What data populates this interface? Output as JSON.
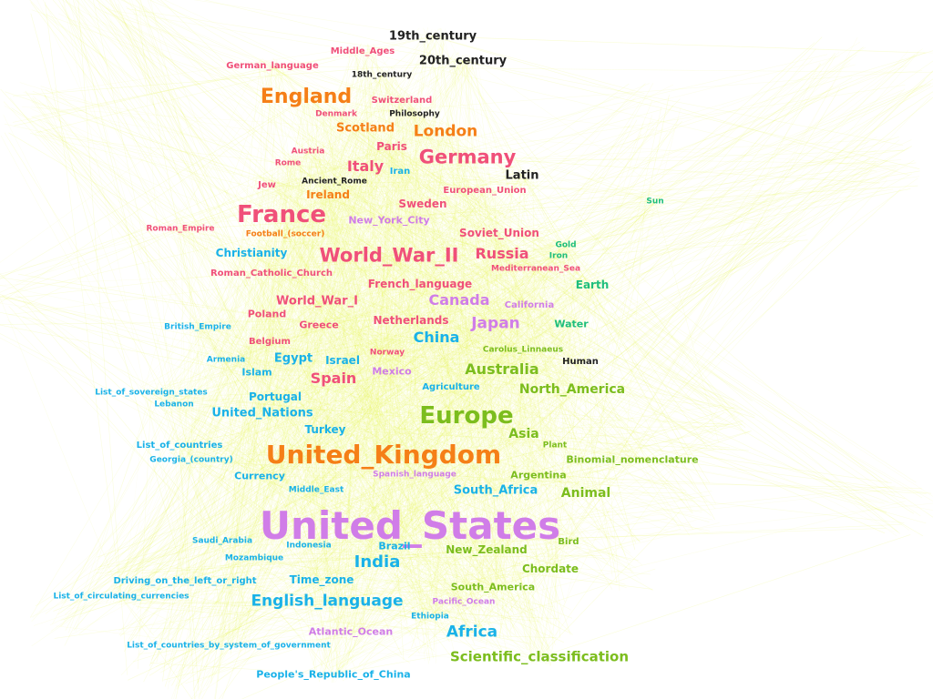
{
  "colors": {
    "pink": "#f0507a",
    "orange": "#f57f17",
    "green": "#7cbd1e",
    "cyan": "#1ab2e8",
    "violet": "#d07de8",
    "teal": "#1ebe7c",
    "dark": "#222222",
    "edge": "#e6f542"
  },
  "nodes": [
    {
      "label": "19th_century",
      "group": "dark"
    },
    {
      "label": "Middle_Ages",
      "group": "pink"
    },
    {
      "label": "20th_century",
      "group": "dark"
    },
    {
      "label": "German_language",
      "group": "pink"
    },
    {
      "label": "18th_century",
      "group": "dark"
    },
    {
      "label": "England",
      "group": "orange"
    },
    {
      "label": "Switzerland",
      "group": "pink"
    },
    {
      "label": "Denmark",
      "group": "pink"
    },
    {
      "label": "Philosophy",
      "group": "dark"
    },
    {
      "label": "Scotland",
      "group": "orange"
    },
    {
      "label": "London",
      "group": "orange"
    },
    {
      "label": "Paris",
      "group": "pink"
    },
    {
      "label": "Austria",
      "group": "pink"
    },
    {
      "label": "Germany",
      "group": "pink"
    },
    {
      "label": "Rome",
      "group": "pink"
    },
    {
      "label": "Italy",
      "group": "pink"
    },
    {
      "label": "Iran",
      "group": "cyan"
    },
    {
      "label": "Latin",
      "group": "dark"
    },
    {
      "label": "Ancient_Rome",
      "group": "dark"
    },
    {
      "label": "Jew",
      "group": "pink"
    },
    {
      "label": "Ireland",
      "group": "orange"
    },
    {
      "label": "European_Union",
      "group": "pink"
    },
    {
      "label": "Sweden",
      "group": "pink"
    },
    {
      "label": "Sun",
      "group": "teal"
    },
    {
      "label": "France",
      "group": "pink"
    },
    {
      "label": "New_York_City",
      "group": "violet"
    },
    {
      "label": "Roman_Empire",
      "group": "pink"
    },
    {
      "label": "Football_(soccer)",
      "group": "orange"
    },
    {
      "label": "Soviet_Union",
      "group": "pink"
    },
    {
      "label": "Gold",
      "group": "teal"
    },
    {
      "label": "Christianity",
      "group": "cyan"
    },
    {
      "label": "World_War_II",
      "group": "pink"
    },
    {
      "label": "Russia",
      "group": "pink"
    },
    {
      "label": "Iron",
      "group": "teal"
    },
    {
      "label": "Mediterranean_Sea",
      "group": "pink"
    },
    {
      "label": "Roman_Catholic_Church",
      "group": "pink"
    },
    {
      "label": "French_language",
      "group": "pink"
    },
    {
      "label": "Earth",
      "group": "teal"
    },
    {
      "label": "World_War_I",
      "group": "pink"
    },
    {
      "label": "Canada",
      "group": "violet"
    },
    {
      "label": "California",
      "group": "violet"
    },
    {
      "label": "Poland",
      "group": "pink"
    },
    {
      "label": "Netherlands",
      "group": "pink"
    },
    {
      "label": "Greece",
      "group": "pink"
    },
    {
      "label": "Japan",
      "group": "violet"
    },
    {
      "label": "British_Empire",
      "group": "cyan"
    },
    {
      "label": "Water",
      "group": "teal"
    },
    {
      "label": "China",
      "group": "cyan"
    },
    {
      "label": "Belgium",
      "group": "pink"
    },
    {
      "label": "Norway",
      "group": "pink"
    },
    {
      "label": "Carolus_Linnaeus",
      "group": "green"
    },
    {
      "label": "Armenia",
      "group": "cyan"
    },
    {
      "label": "Egypt",
      "group": "cyan"
    },
    {
      "label": "Israel",
      "group": "cyan"
    },
    {
      "label": "Human",
      "group": "dark"
    },
    {
      "label": "Islam",
      "group": "cyan"
    },
    {
      "label": "Mexico",
      "group": "violet"
    },
    {
      "label": "Australia",
      "group": "green"
    },
    {
      "label": "Spain",
      "group": "pink"
    },
    {
      "label": "List_of_sovereign_states",
      "group": "cyan"
    },
    {
      "label": "Agriculture",
      "group": "cyan"
    },
    {
      "label": "North_America",
      "group": "green"
    },
    {
      "label": "Portugal",
      "group": "cyan"
    },
    {
      "label": "Lebanon",
      "group": "cyan"
    },
    {
      "label": "United_Nations",
      "group": "cyan"
    },
    {
      "label": "Europe",
      "group": "green"
    },
    {
      "label": "Turkey",
      "group": "cyan"
    },
    {
      "label": "Asia",
      "group": "green"
    },
    {
      "label": "List_of_countries",
      "group": "cyan"
    },
    {
      "label": "Plant",
      "group": "green"
    },
    {
      "label": "United_Kingdom",
      "group": "orange"
    },
    {
      "label": "Georgia_(country)",
      "group": "cyan"
    },
    {
      "label": "Binomial_nomenclature",
      "group": "green"
    },
    {
      "label": "Currency",
      "group": "cyan"
    },
    {
      "label": "Spanish_language",
      "group": "violet"
    },
    {
      "label": "Argentina",
      "group": "green"
    },
    {
      "label": "Middle_East",
      "group": "cyan"
    },
    {
      "label": "South_Africa",
      "group": "cyan"
    },
    {
      "label": "Animal",
      "group": "green"
    },
    {
      "label": "United_States",
      "group": "violet"
    },
    {
      "label": "Saudi_Arabia",
      "group": "cyan"
    },
    {
      "label": "Indonesia",
      "group": "cyan"
    },
    {
      "label": "Brazil",
      "group": "cyan"
    },
    {
      "label": "Bird",
      "group": "green"
    },
    {
      "label": "New_Zealand",
      "group": "green"
    },
    {
      "label": "Mozambique",
      "group": "cyan"
    },
    {
      "label": "India",
      "group": "cyan"
    },
    {
      "label": "Chordate",
      "group": "green"
    },
    {
      "label": "Driving_on_the_left_or_right",
      "group": "cyan"
    },
    {
      "label": "Time_zone",
      "group": "cyan"
    },
    {
      "label": "South_America",
      "group": "green"
    },
    {
      "label": "List_of_circulating_currencies",
      "group": "cyan"
    },
    {
      "label": "English_language",
      "group": "cyan"
    },
    {
      "label": "Pacific_Ocean",
      "group": "violet"
    },
    {
      "label": "Ethiopia",
      "group": "cyan"
    },
    {
      "label": "Atlantic_Ocean",
      "group": "violet"
    },
    {
      "label": "Africa",
      "group": "cyan"
    },
    {
      "label": "List_of_countries_by_system_of_government",
      "group": "cyan"
    },
    {
      "label": "Scientific_classification",
      "group": "green"
    },
    {
      "label": "People's_Republic_of_China",
      "group": "cyan"
    }
  ]
}
